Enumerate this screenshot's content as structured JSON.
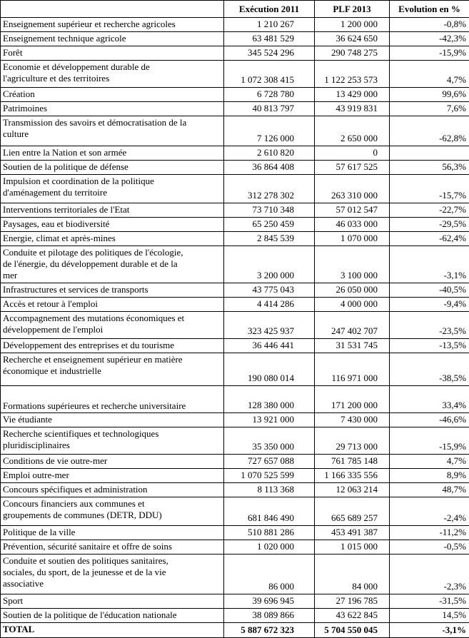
{
  "table": {
    "headers": [
      "",
      "Exécution 2011",
      "PLF 2013",
      "Evolution en %"
    ],
    "rows": [
      {
        "label": "Enseignement supérieur et recherche agricoles",
        "v2011": "1 210 267",
        "v2013": "1 200 000",
        "evo": "-0,8%"
      },
      {
        "label": "Enseignement technique agricole",
        "v2011": "63 481 529",
        "v2013": "36 624 650",
        "evo": "-42,3%"
      },
      {
        "label": "Forêt",
        "v2011": "345 524 296",
        "v2013": "290 748 275",
        "evo": "-15,9%"
      },
      {
        "label": "Economie et développement durable de\nl'agriculture et des territoires",
        "v2011": "1 072 308 415",
        "v2013": "1 122 253 573",
        "evo": "4,7%"
      },
      {
        "label": "Création",
        "v2011": "6 728 780",
        "v2013": "13 429 000",
        "evo": "99,6%"
      },
      {
        "label": "Patrimoines",
        "v2011": "40 813 797",
        "v2013": "43 919 831",
        "evo": "7,6%"
      },
      {
        "label": "Transmission des savoirs et démocratisation de la\nculture",
        "v2011": "7 126 000",
        "v2013": "2 650 000",
        "evo": "-62,8%"
      },
      {
        "label": "Lien entre la Nation et son armée",
        "v2011": "2 610 820",
        "v2013": "0",
        "evo": ""
      },
      {
        "label": "Soutien de la politique de défense",
        "v2011": "36 864 408",
        "v2013": "57 617 525",
        "evo": "56,3%"
      },
      {
        "label": "Impulsion et coordination de la politique\nd'aménagement du territoire",
        "v2011": "312 278 302",
        "v2013": "263 310 000",
        "evo": "-15,7%"
      },
      {
        "label": "Interventions territoriales de l'Etat",
        "v2011": "73 710 348",
        "v2013": "57 012 547",
        "evo": "-22,7%"
      },
      {
        "label": "Paysages, eau et biodiversité",
        "v2011": "65 250 459",
        "v2013": "46 033 000",
        "evo": "-29,5%"
      },
      {
        "label": "Energie, climat et après-mines",
        "v2011": "2 845 539",
        "v2013": "1 070 000",
        "evo": "-62,4%"
      },
      {
        "label": "Conduite et pilotage des politiques de l'écologie,\nde l'énergie, du développement durable et de la\nmer",
        "v2011": "3 200 000",
        "v2013": "3 100 000",
        "evo": "-3,1%"
      },
      {
        "label": "Infrastructures et services de transports",
        "v2011": "43 775 043",
        "v2013": "26 050 000",
        "evo": "-40,5%"
      },
      {
        "label": "Accès et retour à l'emploi",
        "v2011": "4 414 286",
        "v2013": "4 000 000",
        "evo": "-9,4%"
      },
      {
        "label": "Accompagnement des mutations économiques et\ndéveloppement de l'emploi",
        "v2011": "323 425 937",
        "v2013": "247 402 707",
        "evo": "-23,5%"
      },
      {
        "label": "Développement des entreprises et du tourisme",
        "v2011": "36 446 441",
        "v2013": "31 531 745",
        "evo": "-13,5%"
      },
      {
        "label": "Recherche et enseignement supérieur en matière\néconomique et industrielle",
        "v2011": "190 080 014",
        "v2013": "116 971 000",
        "evo": "-38,5%"
      },
      {
        "label": "Formations supérieures et recherche universitaire",
        "v2011": "128 380 000",
        "v2013": "171 200 000",
        "evo": "33,4%"
      },
      {
        "label": "Vie étudiante",
        "v2011": "13 921 000",
        "v2013": "7 430 000",
        "evo": "-46,6%"
      },
      {
        "label": "Recherche scientifiques et technologiques\npluridisciplinaires",
        "v2011": "35 350 000",
        "v2013": "29 713 000",
        "evo": "-15,9%"
      },
      {
        "label": "Conditions de vie outre-mer",
        "v2011": "727 657 088",
        "v2013": "761 785 148",
        "evo": "4,7%"
      },
      {
        "label": "Emploi outre-mer",
        "v2011": "1 070 525 599",
        "v2013": "1 166 335 556",
        "evo": "8,9%"
      },
      {
        "label": "Concours spécifiques et administration",
        "v2011": "8 113 368",
        "v2013": "12 063 214",
        "evo": "48,7%"
      },
      {
        "label": "Concours financiers aux communes et\ngroupements de communes (DETR, DDU)",
        "v2011": "681 846 490",
        "v2013": "665 689 257",
        "evo": "-2,4%"
      },
      {
        "label": "Politique de la ville",
        "v2011": "510 881 286",
        "v2013": "453 491 387",
        "evo": "-11,2%"
      },
      {
        "label": "Prévention, sécurité sanitaire et offre de soins",
        "v2011": "1 020 000",
        "v2013": "1 015 000",
        "evo": "-0,5%"
      },
      {
        "label": "Conduite et soutien des politiques sanitaires,\nsociales, du sport, de la jeunesse et de la vie\nassociative",
        "v2011": "86 000",
        "v2013": "84 000",
        "evo": "-2,3%"
      },
      {
        "label": "Sport",
        "v2011": "39 696 945",
        "v2013": "27 196 785",
        "evo": "-31,5%"
      },
      {
        "label": "Soutien de la politique de l'éducation nationale",
        "v2011": "38 089 866",
        "v2013": "43 622 845",
        "evo": "14,5%"
      }
    ],
    "total": {
      "label": "TOTAL",
      "v2011": "5 887 672 323",
      "v2013": "5 704 550 045",
      "evo": "-3,1%"
    }
  }
}
